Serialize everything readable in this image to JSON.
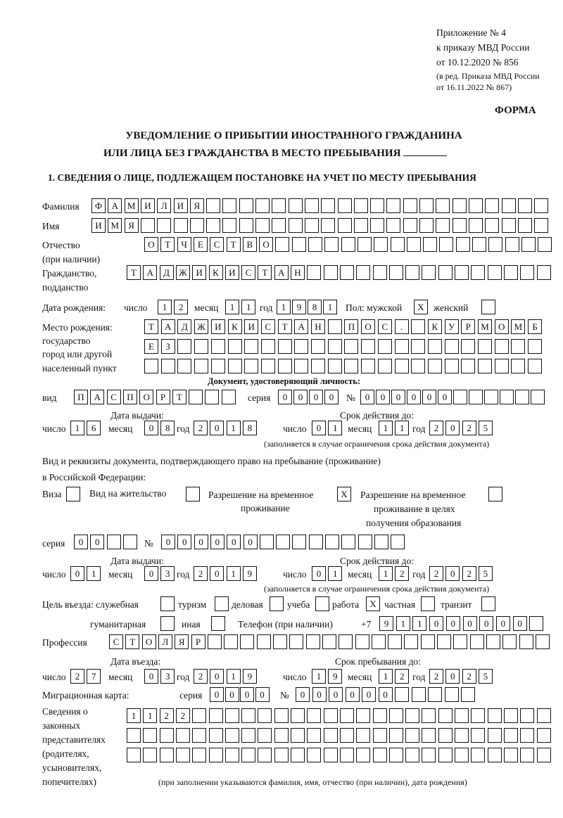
{
  "header": {
    "appendix": "Приложение № 4",
    "order_ref": "к приказу МВД России",
    "order_date": "от 10.12.2020 № 856",
    "edit_note_1": "(в ред. Приказа МВД России",
    "edit_note_2": "от 16.11.2022 № 867)",
    "form_label": "ФОРМА",
    "title_1": "УВЕДОМЛЕНИЕ О ПРИБЫТИИ ИНОСТРАННОГО ГРАЖДАНИНА",
    "title_2": "ИЛИ ЛИЦА БЕЗ ГРАЖДАНСТВА В МЕСТО ПРЕБЫВАНИЯ",
    "section_1": "1. СВЕДЕНИЯ О ЛИЦЕ, ПОДЛЕЖАЩЕМ ПОСТАНОВКЕ НА УЧЕТ ПО МЕСТУ ПРЕБЫВАНИЯ"
  },
  "labels": {
    "surname": "Фамилия",
    "name": "Имя",
    "patronymic_1": "Отчество",
    "patronymic_2": "(при наличии)",
    "citizenship_1": "Гражданство,",
    "citizenship_2": "подданство",
    "birth_date": "Дата рождения:",
    "day": "число",
    "month": "месяц",
    "year": "год",
    "sex": "Пол: мужской",
    "female": "женский",
    "birth_place_1": "Место рождения:",
    "birth_place_2": "государство",
    "birth_place_3": "город или другой",
    "birth_place_4": "населенный пункт",
    "id_doc": "Документ, удостоверяющий личность:",
    "kind": "вид",
    "series": "серия",
    "number": "№",
    "issue_date": "Дата выдачи:",
    "valid_until": "Срок действия до:",
    "valid_note": "(заполняется в случае ограничения срока действия документа)",
    "stay_doc_1": "Вид и реквизиты документа, подтверждающего право на пребывание (проживание)",
    "stay_doc_2": "в Российской Федерации:",
    "visa": "Виза",
    "residence": "Вид на жительство",
    "temp_res_1": "Разрешение на временное",
    "temp_res_2": "проживание",
    "edu_res_1": "Разрешение на временное",
    "edu_res_2": "проживание в целях",
    "edu_res_3": "получения образования",
    "purpose": "Цель въезда: служебная",
    "tourism": "туризм",
    "business": "деловая",
    "study": "учеба",
    "work": "работа",
    "private": "частная",
    "transit": "транзит",
    "humanitarian": "гуманитарная",
    "other": "иная",
    "phone": "Телефон (при наличии)",
    "phone_prefix": "+7",
    "profession": "Профессия",
    "entry_date": "Дата въезда:",
    "stay_until": "Срок пребывания до:",
    "migration_card": "Миграционная карта:",
    "reps_1": "Сведения о",
    "reps_2": "законных",
    "reps_3": "представителях",
    "reps_4": "(родителях,",
    "reps_5": "усыновителях,",
    "reps_6": "попечителях)",
    "reps_note": "(при заполнении указываются фамилия, имя, отчество (при наличии), дата рождения)"
  },
  "person": {
    "surname": "ФАМИЛИЯ",
    "name": "ИМЯ",
    "patronymic": "ОТЧЕСТВО",
    "citizenship": "ТАДЖИКИСТАН",
    "birth_day": "12",
    "birth_month": "11",
    "birth_year": "1981",
    "male": "X",
    "female": "",
    "birth_place_1": "ТАДЖИКИСТАН ПОС. КУРМОМБ",
    "birth_place_2": "ЕЗ",
    "birth_place_3": ""
  },
  "id_document": {
    "kind": "ПАСПОРТ",
    "series": "0000",
    "number": "000000",
    "issue_day": "16",
    "issue_month": "08",
    "issue_year": "2018",
    "valid_day": "01",
    "valid_month": "11",
    "valid_year": "2025"
  },
  "stay_document": {
    "visa": "",
    "residence": "",
    "temp_residence": "X",
    "edu_residence": "",
    "series": "00",
    "number": "000000",
    "issue_day": "01",
    "issue_month": "03",
    "issue_year": "2019",
    "valid_day": "01",
    "valid_month": "12",
    "valid_year": "2025"
  },
  "purpose": {
    "official": "",
    "tourism": "",
    "business": "",
    "study": "",
    "work": "X",
    "private": "",
    "transit": "",
    "humanitarian": "",
    "other": ""
  },
  "phone": "911000000",
  "profession": "СТОЛЯР",
  "entry": {
    "day": "27",
    "month": "03",
    "year": "2019",
    "until_day": "19",
    "until_month": "12",
    "until_year": "2025"
  },
  "migration_card": {
    "series": "0000",
    "number": "000000"
  },
  "representatives": {
    "row_1": "1122",
    "row_2": "",
    "row_3": ""
  }
}
